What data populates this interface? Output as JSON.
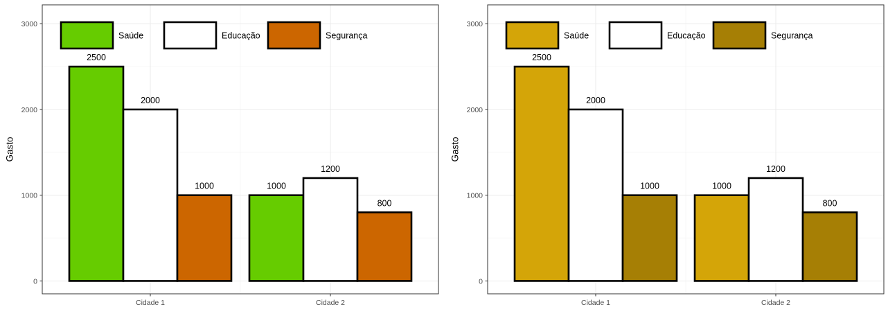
{
  "chart_data": [
    {
      "type": "bar",
      "categories": [
        "Cidade 1",
        "Cidade 2"
      ],
      "series": [
        {
          "name": "Saúde",
          "values": [
            2500,
            1000
          ],
          "color": "#66cc00"
        },
        {
          "name": "Educação",
          "values": [
            2000,
            1200
          ],
          "color": "#ffffff"
        },
        {
          "name": "Segurança",
          "values": [
            1000,
            800
          ],
          "color": "#cc6600"
        }
      ],
      "ylabel": "Gasto",
      "xlabel": "",
      "yticks": [
        0,
        1000,
        2000,
        3000
      ],
      "ylim": [
        -150,
        3220
      ],
      "grid": true,
      "legend_position": "top-left, inside"
    },
    {
      "type": "bar",
      "categories": [
        "Cidade 1",
        "Cidade 2"
      ],
      "series": [
        {
          "name": "Saúde",
          "values": [
            2500,
            1000
          ],
          "color": "#d4a508"
        },
        {
          "name": "Educação",
          "values": [
            2000,
            1200
          ],
          "color": "#ffffff"
        },
        {
          "name": "Segurança",
          "values": [
            1000,
            800
          ],
          "color": "#a67f05"
        }
      ],
      "ylabel": "Gasto",
      "xlabel": "",
      "yticks": [
        0,
        1000,
        2000,
        3000
      ],
      "ylim": [
        -150,
        3220
      ],
      "grid": true,
      "legend_position": "top-left, inside"
    }
  ]
}
